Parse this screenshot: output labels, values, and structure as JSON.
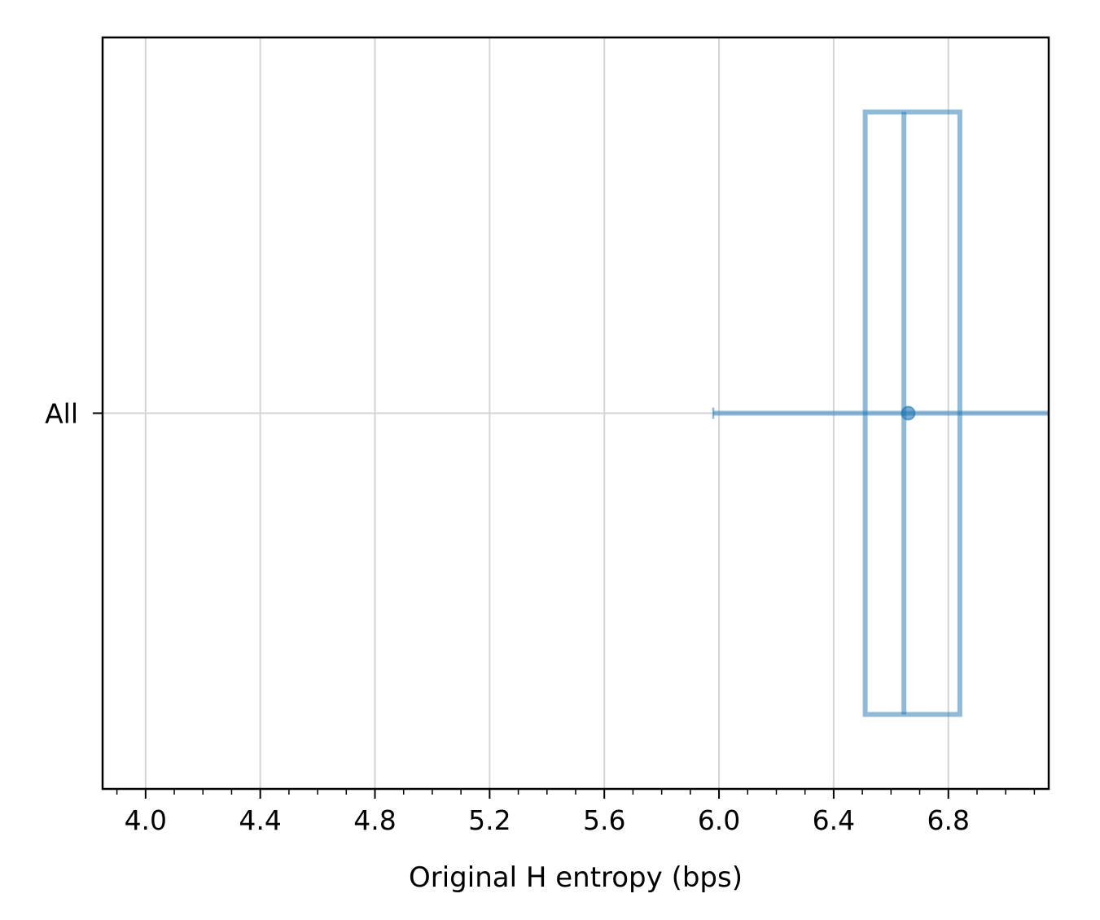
{
  "chart_data": {
    "type": "box",
    "orientation": "horizontal",
    "title": "",
    "xlabel": "Original H entropy (bps)",
    "ylabel": "",
    "xlim": [
      3.85,
      7.15
    ],
    "xticks": [
      4.0,
      4.4,
      4.8,
      5.2,
      5.6,
      6.0,
      6.4,
      6.8
    ],
    "xtick_labels": [
      "4.0",
      "4.4",
      "4.8",
      "5.2",
      "5.6",
      "6.0",
      "6.4",
      "6.8"
    ],
    "minor_tick_step": 0.1,
    "grid": true,
    "categories": [
      "All"
    ],
    "series": [
      {
        "category": "All",
        "q1": 6.51,
        "median": 6.645,
        "q3": 6.84,
        "mean": 6.66,
        "whisker_low": 5.98,
        "whisker_high": 7.15
      }
    ],
    "color": "#1f77b4"
  }
}
